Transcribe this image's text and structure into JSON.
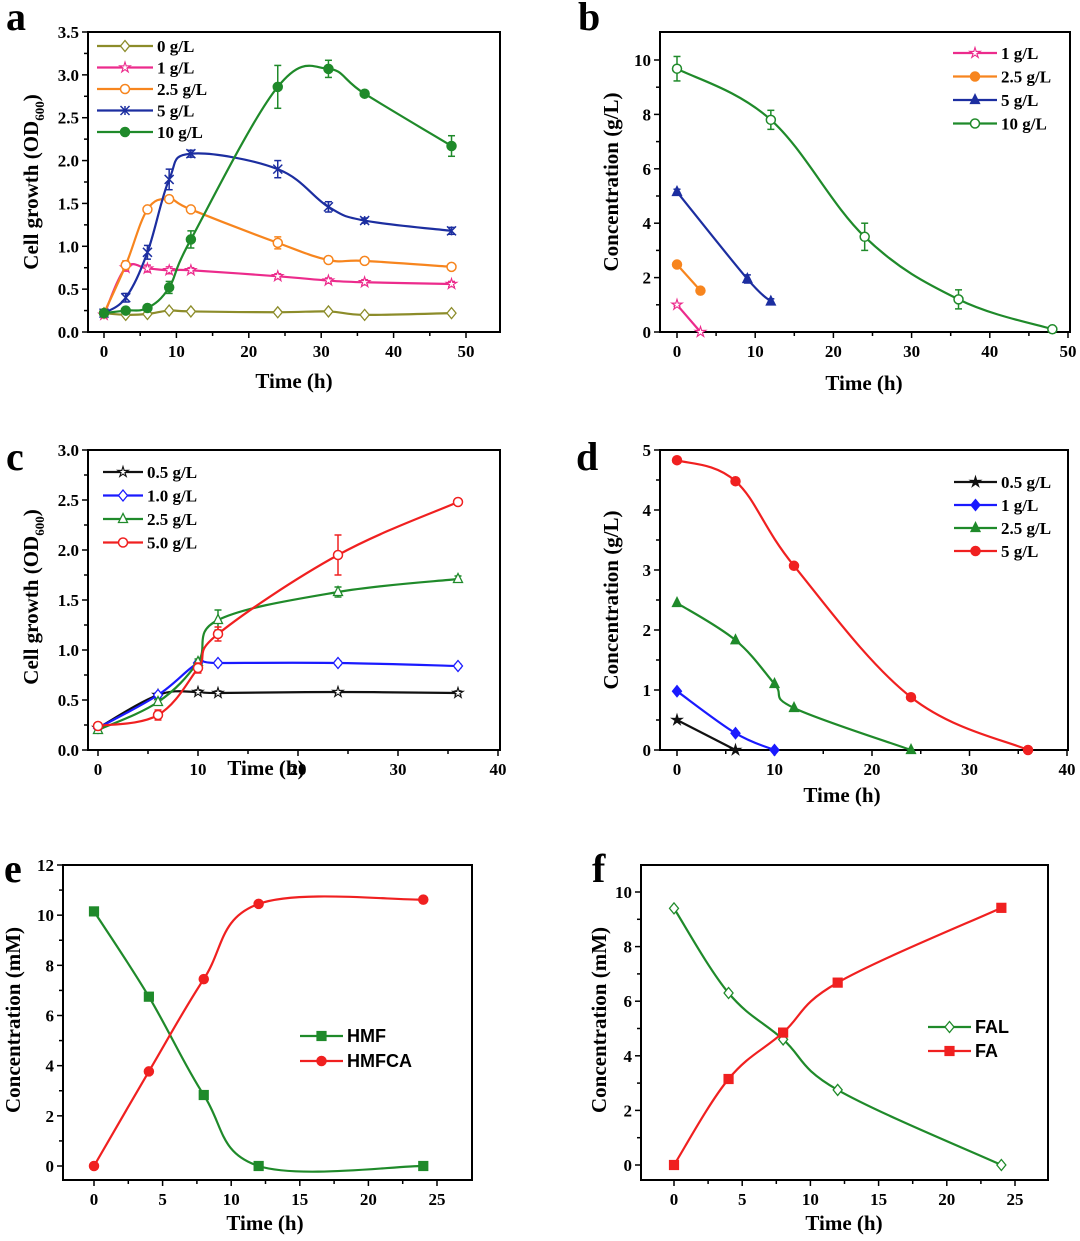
{
  "figure": {
    "panels": [
      "a",
      "b",
      "c",
      "d",
      "e",
      "f"
    ]
  },
  "chart_data": [
    {
      "id": "a",
      "type": "line",
      "panel_label": "a",
      "xlabel": "Time (h)",
      "ylabel": "Cell growth (OD",
      "ylabel_sub": "600",
      "ylabel_end": ")",
      "xlim": [
        -2,
        55
      ],
      "ylim": [
        0,
        3.5
      ],
      "xticks": [
        0,
        10,
        20,
        30,
        40,
        50
      ],
      "yticks": [
        "0.0",
        "0.5",
        "1.0",
        "1.5",
        "2.0",
        "2.5",
        "3.0",
        "3.5"
      ],
      "legend_position": "top-left",
      "series": [
        {
          "name": "0 g/L",
          "color": "#8c8c2a",
          "marker": "diamond-open",
          "x": [
            0,
            3,
            6,
            9,
            12,
            24,
            31,
            36,
            48
          ],
          "y": [
            0.22,
            0.2,
            0.21,
            0.25,
            0.24,
            0.23,
            0.24,
            0.2,
            0.22
          ],
          "err": [
            0.02,
            0.01,
            0.01,
            0.02,
            0.02,
            0.02,
            0.02,
            0.02,
            0.02
          ]
        },
        {
          "name": "1 g/L",
          "color": "#ec2b8c",
          "marker": "star-open",
          "x": [
            0,
            3,
            6,
            9,
            12,
            24,
            31,
            36,
            48
          ],
          "y": [
            0.2,
            0.75,
            0.74,
            0.72,
            0.72,
            0.65,
            0.6,
            0.58,
            0.56
          ],
          "err": [
            0.02,
            0.04,
            0.04,
            0.04,
            0.03,
            0.03,
            0.03,
            0.03,
            0.03
          ]
        },
        {
          "name": "2.5 g/L",
          "color": "#f7851e",
          "marker": "circle-open",
          "x": [
            0,
            3,
            6,
            9,
            12,
            24,
            31,
            36,
            48
          ],
          "y": [
            0.22,
            0.78,
            1.43,
            1.55,
            1.43,
            1.04,
            0.84,
            0.83,
            0.76
          ],
          "err": [
            0.02,
            0.05,
            0.03,
            0.03,
            0.03,
            0.07,
            0.02,
            0.02,
            0.02
          ]
        },
        {
          "name": "5 g/L",
          "color": "#1c2ea0",
          "marker": "x-star",
          "x": [
            0,
            3,
            6,
            9,
            12,
            24,
            31,
            36,
            48
          ],
          "y": [
            0.22,
            0.4,
            0.93,
            1.78,
            2.08,
            1.9,
            1.46,
            1.3,
            1.18
          ],
          "err": [
            0.02,
            0.05,
            0.08,
            0.12,
            0.04,
            0.1,
            0.06,
            0.03,
            0.04
          ]
        },
        {
          "name": "10 g/L",
          "color": "#1f8a2a",
          "marker": "circle-half",
          "x": [
            0,
            3,
            6,
            9,
            12,
            24,
            31,
            36,
            48
          ],
          "y": [
            0.22,
            0.25,
            0.28,
            0.52,
            1.08,
            2.86,
            3.07,
            2.78,
            2.17
          ],
          "err": [
            0.02,
            0.03,
            0.02,
            0.07,
            0.1,
            0.25,
            0.1,
            0.02,
            0.12
          ]
        }
      ]
    },
    {
      "id": "b",
      "type": "line",
      "panel_label": "b",
      "xlabel": "Time (h)",
      "ylabel": "Concentration (g/L)",
      "xlim": [
        -2,
        50
      ],
      "ylim": [
        0,
        11
      ],
      "xticks": [
        0,
        10,
        20,
        30,
        40,
        50
      ],
      "yticks": [
        "0",
        "2",
        "4",
        "6",
        "8",
        "10"
      ],
      "legend_position": "top-right",
      "series": [
        {
          "name": "1 g/L",
          "color": "#ec2b8c",
          "marker": "star-open",
          "x": [
            0,
            3
          ],
          "y": [
            1.0,
            0.0
          ],
          "err": [
            0.05,
            0.0
          ]
        },
        {
          "name": "2.5 g/L",
          "color": "#f7851e",
          "marker": "circle-filled",
          "x": [
            0,
            3
          ],
          "y": [
            2.48,
            1.52
          ],
          "err": [
            0.08,
            0.05
          ]
        },
        {
          "name": "5 g/L",
          "color": "#1c2ea0",
          "marker": "triangle-filled",
          "x": [
            0,
            9,
            12
          ],
          "y": [
            5.15,
            1.95,
            1.12
          ],
          "err": [
            0.1,
            0.15,
            0.1
          ]
        },
        {
          "name": "10 g/L",
          "color": "#1f8a2a",
          "marker": "circle-open",
          "x": [
            0,
            12,
            24,
            36,
            48
          ],
          "y": [
            9.68,
            7.8,
            3.5,
            1.2,
            0.1
          ],
          "err": [
            0.45,
            0.35,
            0.5,
            0.35,
            0.1
          ]
        }
      ]
    },
    {
      "id": "c",
      "type": "line",
      "panel_label": "c",
      "xlabel": "Time (h)",
      "ylabel": "Cell growth (OD",
      "ylabel_sub": "600",
      "ylabel_end": ")",
      "xlim": [
        -1,
        40
      ],
      "ylim": [
        0,
        3.0
      ],
      "xticks": [
        0,
        10,
        20,
        30,
        40
      ],
      "yticks": [
        "0.0",
        "0.5",
        "1.0",
        "1.5",
        "2.0",
        "2.5",
        "3.0"
      ],
      "legend_position": "top-left",
      "series": [
        {
          "name": "0.5 g/L",
          "color": "#111111",
          "marker": "star-open",
          "x": [
            0,
            6,
            10,
            12,
            24,
            36
          ],
          "y": [
            0.22,
            0.55,
            0.58,
            0.57,
            0.58,
            0.57
          ],
          "err": [
            0.02,
            0.02,
            0.02,
            0.02,
            0.01,
            0.02
          ]
        },
        {
          "name": "1.0 g/L",
          "color": "#1a1aff",
          "marker": "diamond-open",
          "x": [
            0,
            6,
            10,
            12,
            24,
            36
          ],
          "y": [
            0.22,
            0.55,
            0.87,
            0.87,
            0.87,
            0.84
          ],
          "err": [
            0.02,
            0.02,
            0.02,
            0.02,
            0.02,
            0.02
          ]
        },
        {
          "name": "2.5 g/L",
          "color": "#1f8a2a",
          "marker": "triangle-open",
          "x": [
            0,
            6,
            10,
            12,
            24,
            36
          ],
          "y": [
            0.2,
            0.48,
            0.88,
            1.3,
            1.58,
            1.71
          ],
          "err": [
            0.02,
            0.03,
            0.03,
            0.1,
            0.05,
            0.03
          ]
        },
        {
          "name": "5.0 g/L",
          "color": "#f02020",
          "marker": "circle-open",
          "x": [
            0,
            6,
            10,
            12,
            24,
            36
          ],
          "y": [
            0.24,
            0.35,
            0.82,
            1.16,
            1.95,
            2.48
          ],
          "err": [
            0.02,
            0.05,
            0.05,
            0.07,
            0.2,
            0.02
          ]
        }
      ]
    },
    {
      "id": "d",
      "type": "line",
      "panel_label": "d",
      "xlabel": "Time (h)",
      "ylabel": "Concentration (g/L)",
      "xlim": [
        -2,
        40
      ],
      "ylim": [
        0,
        5
      ],
      "xticks": [
        0,
        10,
        20,
        30,
        40
      ],
      "yticks": [
        "0",
        "1",
        "2",
        "3",
        "4",
        "5"
      ],
      "legend_position": "top-right",
      "series": [
        {
          "name": "0.5 g/L",
          "color": "#111111",
          "marker": "star-filled",
          "x": [
            0,
            6
          ],
          "y": [
            0.5,
            0.0
          ]
        },
        {
          "name": "1 g/L",
          "color": "#1a1aff",
          "marker": "diamond-filled",
          "x": [
            0,
            6,
            10
          ],
          "y": [
            0.98,
            0.28,
            0.0
          ]
        },
        {
          "name": "2.5 g/L",
          "color": "#1f8a2a",
          "marker": "triangle-filled",
          "x": [
            0,
            6,
            10,
            12,
            24
          ],
          "y": [
            2.45,
            1.83,
            1.1,
            0.7,
            0.0
          ]
        },
        {
          "name": "5 g/L",
          "color": "#f02020",
          "marker": "circle-filled",
          "x": [
            0,
            6,
            12,
            24,
            36
          ],
          "y": [
            4.83,
            4.48,
            3.07,
            0.88,
            0.0
          ]
        }
      ]
    },
    {
      "id": "e",
      "type": "line",
      "panel_label": "e",
      "xlabel": "Time (h)",
      "ylabel": "Concentration (mM)",
      "xlim": [
        -2,
        27.5
      ],
      "ylim": [
        -0.5,
        12
      ],
      "xticks": [
        0,
        5,
        10,
        15,
        20,
        25
      ],
      "yticks": [
        "0",
        "2",
        "4",
        "6",
        "8",
        "10",
        "12"
      ],
      "legend_position": "center-right",
      "series": [
        {
          "name": "HMF",
          "color": "#1f8a2a",
          "marker": "square-filled",
          "x": [
            0,
            4,
            8,
            12,
            24
          ],
          "y": [
            10.15,
            6.75,
            2.83,
            0.0,
            0.0
          ]
        },
        {
          "name": "HMFCA",
          "color": "#f02020",
          "marker": "circle-filled",
          "x": [
            0,
            4,
            8,
            12,
            24
          ],
          "y": [
            0.0,
            3.77,
            7.45,
            10.45,
            10.62
          ]
        }
      ]
    },
    {
      "id": "f",
      "type": "line",
      "panel_label": "f",
      "xlabel": "Time (h)",
      "ylabel": "Concentration (mM)",
      "xlim": [
        -2,
        27.5
      ],
      "ylim": [
        -0.5,
        11
      ],
      "xticks": [
        0,
        5,
        10,
        15,
        20,
        25
      ],
      "yticks": [
        "0",
        "2",
        "4",
        "6",
        "8",
        "10"
      ],
      "legend_position": "center-right",
      "series": [
        {
          "name": "FAL",
          "color": "#1f8a2a",
          "marker": "diamond-half",
          "x": [
            0,
            4,
            8,
            12,
            24
          ],
          "y": [
            9.4,
            6.3,
            4.6,
            2.75,
            0.0
          ]
        },
        {
          "name": "FA",
          "color": "#f02020",
          "marker": "square-filled",
          "x": [
            0,
            4,
            8,
            12,
            24
          ],
          "y": [
            0.0,
            3.15,
            4.85,
            6.68,
            9.42
          ]
        }
      ]
    }
  ]
}
